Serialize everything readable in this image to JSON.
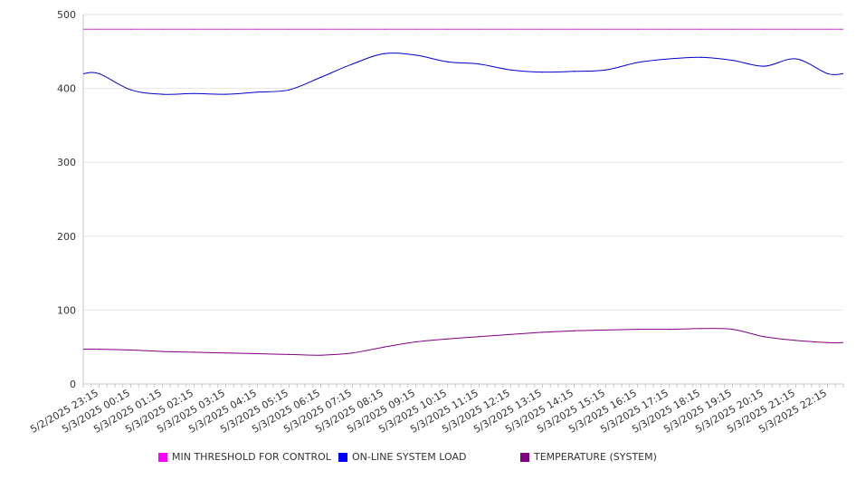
{
  "chart_data": {
    "type": "line",
    "title": "",
    "xlabel": "",
    "ylabel": "",
    "ylim": [
      0,
      500
    ],
    "y_ticks": [
      0,
      100,
      200,
      300,
      400,
      500
    ],
    "grid": true,
    "legend_position": "bottom",
    "x_tick_labels": [
      "5/2/2025 23:15",
      "5/3/2025 00:15",
      "5/3/2025 01:15",
      "5/3/2025 02:15",
      "5/3/2025 03:15",
      "5/3/2025 04:15",
      "5/3/2025 05:15",
      "5/3/2025 06:15",
      "5/3/2025 07:15",
      "5/3/2025 08:15",
      "5/3/2025 09:15",
      "5/3/2025 10:15",
      "5/3/2025 11:15",
      "5/3/2025 12:15",
      "5/3/2025 13:15",
      "5/3/2025 14:15",
      "5/3/2025 15:15",
      "5/3/2025 16:15",
      "5/3/2025 17:15",
      "5/3/2025 18:15",
      "5/3/2025 19:15",
      "5/3/2025 20:15",
      "5/3/2025 21:15",
      "5/3/2025 22:15"
    ],
    "series": [
      {
        "name": "MIN THRESHOLD FOR CONTROL",
        "color": "#cc33cc",
        "values": [
          480,
          480,
          480,
          480,
          480,
          480,
          480,
          480,
          480,
          480,
          480,
          480,
          480,
          480,
          480,
          480,
          480,
          480,
          480,
          480,
          480,
          480,
          480,
          480
        ]
      },
      {
        "name": "ON-LINE SYSTEM LOAD",
        "color": "#0000cc",
        "values": [
          420,
          398,
          392,
          393,
          392,
          395,
          398,
          415,
          433,
          447,
          445,
          436,
          433,
          425,
          422,
          423,
          425,
          435,
          440,
          442,
          438,
          430,
          440,
          420
        ]
      },
      {
        "name": "TEMPERATURE (SYSTEM)",
        "color": "#800080",
        "values": [
          47,
          46,
          44,
          43,
          42,
          41,
          40,
          39,
          42,
          50,
          57,
          61,
          64,
          67,
          70,
          72,
          73,
          74,
          74,
          75,
          74,
          64,
          59,
          56
        ]
      }
    ]
  }
}
